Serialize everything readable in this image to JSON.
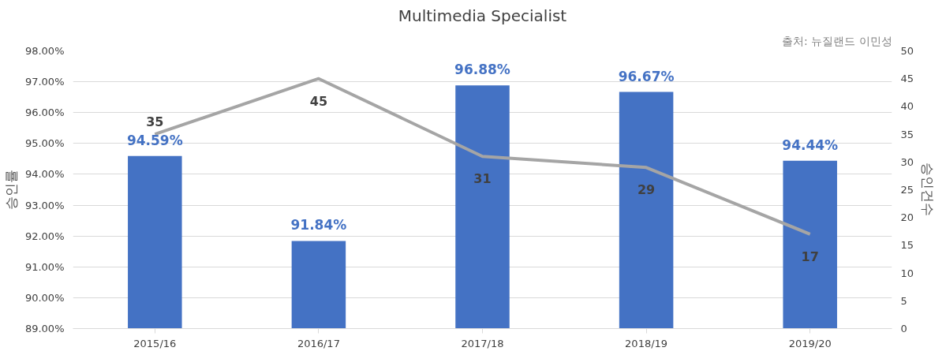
{
  "chart_data": {
    "type": "bar",
    "title": "Multimedia Specialist",
    "annotations": [
      "출처: 뉴질랜드 이민성"
    ],
    "categories": [
      "2015/16",
      "2016/17",
      "2017/18",
      "2018/19",
      "2019/20"
    ],
    "ylabel": "승인률",
    "y2label": "승인건수",
    "series": [
      {
        "color": "#4472c4",
        "values": [
          94.59,
          91.84,
          96.88,
          96.67,
          94.44
        ],
        "value_labels": [
          "94.59%",
          "91.84%",
          "96.88%",
          "96.67%",
          "94.44%"
        ]
      },
      {
        "type": "line",
        "axis": "y2",
        "color": "#a5a5a5",
        "values": [
          35,
          45,
          31,
          29,
          17
        ],
        "value_labels": [
          "35",
          "45",
          "31",
          "29",
          "17"
        ]
      }
    ],
    "ylim": [
      89,
      98
    ],
    "yticks": [
      {
        "value": 89,
        "label": "89.00%"
      },
      {
        "value": 90,
        "label": "90.00%"
      },
      {
        "value": 91,
        "label": "91.00%"
      },
      {
        "value": 92,
        "label": "92.00%"
      },
      {
        "value": 93,
        "label": "93.00%"
      },
      {
        "value": 94,
        "label": "94.00%"
      },
      {
        "value": 95,
        "label": "95.00%"
      },
      {
        "value": 96,
        "label": "96.00%"
      },
      {
        "value": 97,
        "label": "97.00%"
      },
      {
        "value": 98,
        "label": "98.00%"
      }
    ],
    "y2lim": [
      0,
      50
    ],
    "y2ticks": [
      0,
      5,
      10,
      15,
      20,
      25,
      30,
      35,
      40,
      45,
      50
    ],
    "grid": "y",
    "marker": "none",
    "line_style": "solid"
  }
}
